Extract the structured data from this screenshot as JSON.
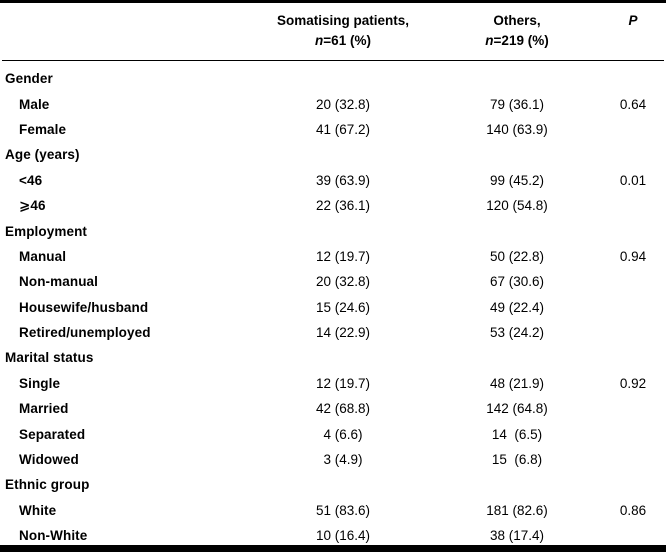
{
  "page": {
    "background_color": "#ffffff",
    "text_color": "#000000",
    "rule_color": "#000000"
  },
  "table": {
    "header": {
      "label_col": "",
      "somatising_line1": "Somatising patients,",
      "somatising_line2": "n=61 (%)",
      "others_line1": "Others,",
      "others_line2": "n=219 (%)",
      "p": "P"
    },
    "sections": [
      {
        "title": "Gender",
        "rows": [
          {
            "label": "Male",
            "somatising": "20 (32.8)",
            "others": "79 (36.1)",
            "p": "0.64"
          },
          {
            "label": "Female",
            "somatising": "41 (67.2)",
            "others": "140 (63.9)"
          }
        ]
      },
      {
        "title": "Age (years)",
        "rows": [
          {
            "label": "<46",
            "somatising": "39 (63.9)",
            "others": "99 (45.2)",
            "p": "0.01"
          },
          {
            "label": "⩾46",
            "somatising": "22 (36.1)",
            "others": "120 (54.8)"
          }
        ]
      },
      {
        "title": "Employment",
        "rows": [
          {
            "label": "Manual",
            "somatising": "12 (19.7)",
            "others": "50 (22.8)",
            "p": "0.94"
          },
          {
            "label": "Non-manual",
            "somatising": "20 (32.8)",
            "others": "67 (30.6)"
          },
          {
            "label": "Housewife/husband",
            "somatising": "15 (24.6)",
            "others": "49 (22.4)"
          },
          {
            "label": "Retired/unemployed",
            "somatising": "14 (22.9)",
            "others": "53 (24.2)"
          }
        ]
      },
      {
        "title": "Marital status",
        "rows": [
          {
            "label": "Single",
            "somatising": "12 (19.7)",
            "others": "48 (21.9)",
            "p": "0.92"
          },
          {
            "label": "Married",
            "somatising": "42 (68.8)",
            "others": "142 (64.8)"
          },
          {
            "label": "Separated",
            "somatising": "4 (6.6)",
            "others": "14  (6.5)"
          },
          {
            "label": "Widowed",
            "somatising": "3 (4.9)",
            "others": "15  (6.8)"
          }
        ]
      },
      {
        "title": "Ethnic group",
        "rows": [
          {
            "label": "White",
            "somatising": "51 (83.6)",
            "others": "181 (82.6)",
            "p": "0.86"
          },
          {
            "label": "Non-White",
            "somatising": "10 (16.4)",
            "others": "38 (17.4)"
          }
        ]
      }
    ]
  }
}
